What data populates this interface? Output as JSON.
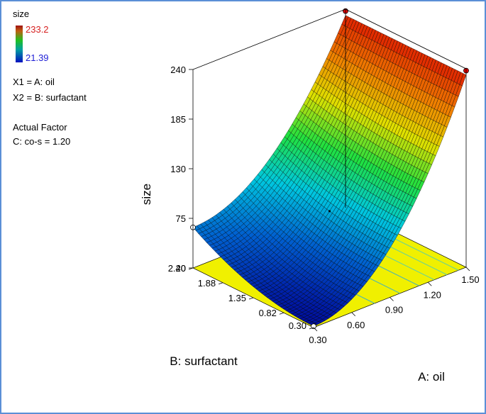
{
  "legend": {
    "title": "size",
    "max_label": "233.2",
    "min_label": "21.39",
    "max_color": "#d62020",
    "min_color": "#2020d6",
    "x1_label": "X1 = A: oil",
    "x2_label": "X2 = B: surfactant",
    "actual_factor_heading": "Actual Factor",
    "actual_factor_value": "C: co-s = 1.20"
  },
  "chart_data": {
    "type": "surface3d",
    "z_axis": {
      "label": "size",
      "ticks": [
        "20",
        "75",
        "130",
        "185",
        "240"
      ],
      "range": [
        20,
        240
      ]
    },
    "a_axis": {
      "label": "A: oil",
      "ticks": [
        "0.30",
        "0.60",
        "0.90",
        "1.20",
        "1.50"
      ],
      "range": [
        0.3,
        1.5
      ]
    },
    "b_axis": {
      "label": "B: surfactant",
      "ticks": [
        "0.30",
        "0.82",
        "1.35",
        "1.88",
        "2.40"
      ],
      "range": [
        0.3,
        2.4
      ]
    },
    "corner_values": [
      {
        "oil": 0.3,
        "surfactant": 2.4,
        "size": 65
      },
      {
        "oil": 0.3,
        "surfactant": 0.3,
        "size": 21.39
      },
      {
        "oil": 1.5,
        "surfactant": 0.3,
        "size": 233.2
      },
      {
        "oil": 1.5,
        "surfactant": 2.4,
        "size": 233.2
      }
    ],
    "response_min": 21.39,
    "response_max": 233.2,
    "colormap": [
      "#0010a0",
      "#0060d0",
      "#00c8e0",
      "#20e040",
      "#e0e000",
      "#f08000",
      "#e02000"
    ],
    "floor_color": "#f0f000"
  }
}
